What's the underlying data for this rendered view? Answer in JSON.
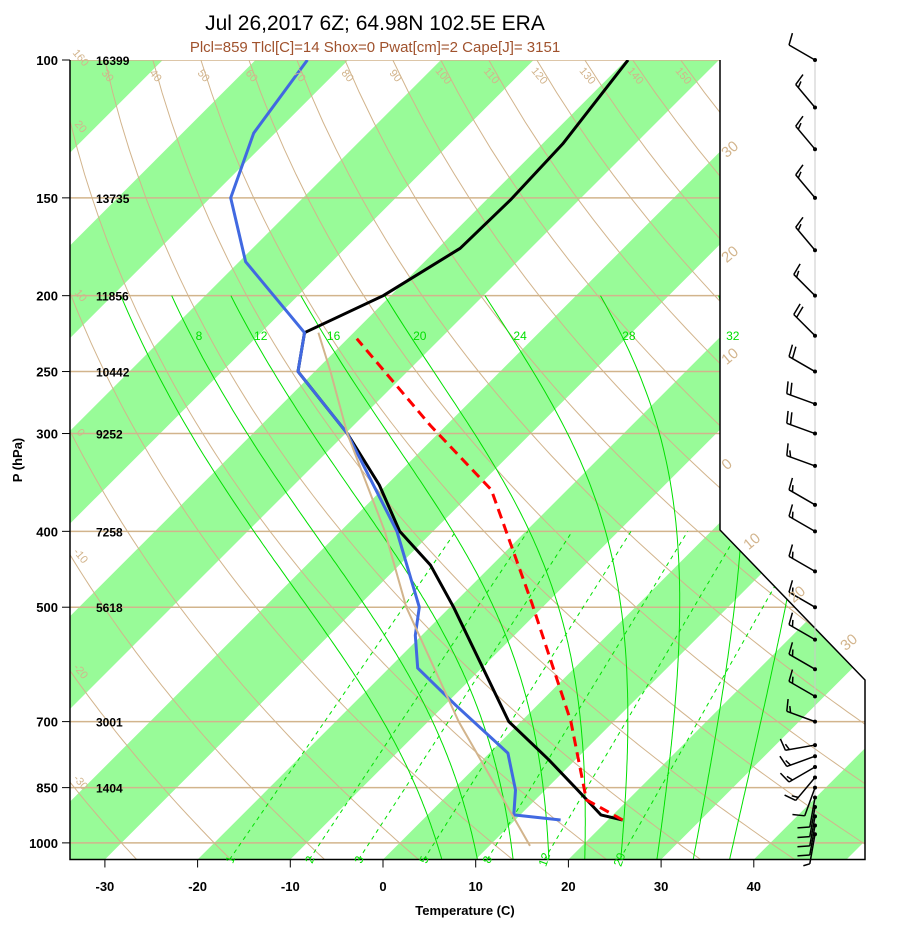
{
  "chart_data": {
    "type": "skew-t",
    "title": "Jul 26,2017 6Z; 64.98N 102.5E ERA",
    "subtitle": "Plcl=859 Tlcl[C]=14 Shox=0 Pwat[cm]=2 Cape[J]= 3151",
    "xlabel": "Temperature (C)",
    "ylabel": "P (hPa)",
    "xlim": [
      -35,
      52
    ],
    "ylim": [
      1050,
      100
    ],
    "x_ticks": [
      -30,
      -20,
      -10,
      0,
      10,
      20,
      30,
      40
    ],
    "x_tick_labels": [
      "-30",
      "-20",
      "-10",
      "0",
      "10",
      "20",
      "30",
      "40"
    ],
    "pressure_levels": [
      100,
      150,
      200,
      250,
      300,
      400,
      500,
      700,
      850,
      1000
    ],
    "pressure_labels": [
      "100",
      "150",
      "200",
      "250",
      "300",
      "400",
      "500",
      "700",
      "850",
      "1000"
    ],
    "height_labels": [
      "16399",
      "13735",
      "11856",
      "10442",
      "9252",
      "7258",
      "5618",
      "3001",
      "1404"
    ],
    "dry_adiabat_labels": [
      "-30",
      "-20",
      "-10",
      "0",
      "10",
      "20",
      "30",
      "40",
      "50",
      "60",
      "70",
      "80",
      "90",
      "100",
      "110",
      "120",
      "130",
      "140",
      "150",
      "160"
    ],
    "moist_adiabat_labels": [
      "8",
      "12",
      "16",
      "20",
      "24",
      "28",
      "32"
    ],
    "mixing_ratio_labels": [
      "1",
      "2",
      "3",
      "5",
      "8",
      "12",
      "20"
    ],
    "right_edge_labels": [
      "30",
      "20",
      "10",
      "0",
      "10",
      "20",
      "30"
    ],
    "series": [
      {
        "name": "temperature",
        "color": "#000000",
        "p": [
          935,
          921,
          856,
          784,
          700,
          500,
          442,
          400,
          349,
          300,
          250,
          223,
          200,
          174,
          151,
          128,
          100
        ],
        "t": [
          21.6,
          18.7,
          13.5,
          7.2,
          -1.3,
          -19.6,
          -26.6,
          -33.6,
          -40.8,
          -49.8,
          -61.8,
          -65.3,
          -60.8,
          -57.6,
          -57.4,
          -57.8,
          -59.8
        ]
      },
      {
        "name": "dewpoint",
        "color": "#4169e1",
        "p": [
          935,
          921,
          856,
          768,
          667,
          598,
          543,
          500,
          400,
          300,
          250,
          223,
          181,
          150,
          124,
          100
        ],
        "t": [
          14.9,
          9.3,
          6.8,
          2.0,
          -8.8,
          -16.9,
          -20.7,
          -23.3,
          -33.9,
          -49.8,
          -61.8,
          -65.3,
          -79.3,
          -87.8,
          -92.3,
          -94.4
        ]
      },
      {
        "name": "parcel",
        "color": "#ff0000",
        "p": [
          935,
          881,
          700,
          495,
          354,
          293,
          227
        ],
        "t": [
          21.6,
          15.5,
          5.4,
          -11.5,
          -28.2,
          -41.7,
          -59.0
        ]
      },
      {
        "name": "virtual-temperature",
        "color": "#d2b48c",
        "p": [
          1009,
          700,
          500,
          400,
          300,
          250,
          223
        ],
        "t": [
          14.4,
          -6.7,
          -24.7,
          -35.2,
          -49.8,
          -58.3,
          -63.8
        ]
      }
    ],
    "wind_barbs": [
      {
        "p": 100,
        "dir": 300,
        "spd": 10
      },
      {
        "p": 115,
        "dir": 320,
        "spd": 15
      },
      {
        "p": 130,
        "dir": 320,
        "spd": 15
      },
      {
        "p": 150,
        "dir": 320,
        "spd": 15
      },
      {
        "p": 175,
        "dir": 320,
        "spd": 15
      },
      {
        "p": 200,
        "dir": 315,
        "spd": 15
      },
      {
        "p": 225,
        "dir": 315,
        "spd": 20
      },
      {
        "p": 250,
        "dir": 300,
        "spd": 20
      },
      {
        "p": 275,
        "dir": 290,
        "spd": 20
      },
      {
        "p": 300,
        "dir": 290,
        "spd": 20
      },
      {
        "p": 330,
        "dir": 290,
        "spd": 15
      },
      {
        "p": 370,
        "dir": 300,
        "spd": 15
      },
      {
        "p": 400,
        "dir": 300,
        "spd": 15
      },
      {
        "p": 450,
        "dir": 300,
        "spd": 15
      },
      {
        "p": 500,
        "dir": 300,
        "spd": 15
      },
      {
        "p": 550,
        "dir": 300,
        "spd": 15
      },
      {
        "p": 600,
        "dir": 300,
        "spd": 15
      },
      {
        "p": 650,
        "dir": 300,
        "spd": 15
      },
      {
        "p": 700,
        "dir": 290,
        "spd": 15
      },
      {
        "p": 750,
        "dir": 260,
        "spd": 15
      },
      {
        "p": 775,
        "dir": 250,
        "spd": 15
      },
      {
        "p": 800,
        "dir": 240,
        "spd": 15
      },
      {
        "p": 825,
        "dir": 220,
        "spd": 15
      },
      {
        "p": 850,
        "dir": 200,
        "spd": 10
      },
      {
        "p": 875,
        "dir": 190,
        "spd": 10
      },
      {
        "p": 900,
        "dir": 190,
        "spd": 10
      },
      {
        "p": 925,
        "dir": 190,
        "spd": 10
      },
      {
        "p": 950,
        "dir": 190,
        "spd": 10
      },
      {
        "p": 975,
        "dir": 190,
        "spd": 5
      }
    ],
    "colors": {
      "band": "#98fb98",
      "isobar": "#d2b48c",
      "moist": "#00e000"
    }
  }
}
